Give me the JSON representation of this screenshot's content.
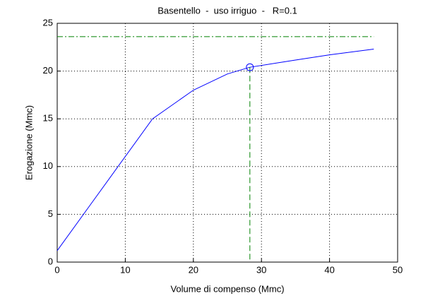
{
  "chart_data": {
    "type": "line",
    "title": "Basentello  -  uso irriguo  -   R=0.1",
    "x_label": "Volume di compenso (Mmc)",
    "y_label": "Erogazione (Mmc)",
    "series": [
      {
        "color": "#0000ff",
        "x": [
          0,
          14,
          20,
          25,
          28.3,
          35,
          40,
          46.5
        ],
        "values": [
          1.2,
          15,
          18,
          19.7,
          20.4,
          21.15,
          21.7,
          22.3
        ]
      }
    ],
    "target_level": 23.6,
    "marker": {
      "x": 28.3,
      "y": 20.4
    },
    "reference_color": "#008000",
    "xlim": [
      0,
      50
    ],
    "xticks": [
      0,
      10,
      20,
      30,
      40,
      50
    ],
    "ylim": [
      0,
      25
    ],
    "yticks": [
      0,
      5,
      10,
      15,
      20,
      25
    ],
    "grid": true
  }
}
